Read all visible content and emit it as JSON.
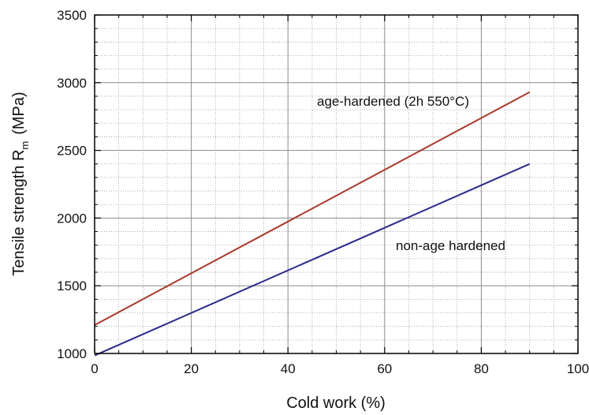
{
  "chart_data": {
    "type": "line",
    "xlabel": "Cold work (%)",
    "ylabel_main": "Tensile strength R",
    "ylabel_subscript": "m",
    "ylabel_unit": "(MPa)",
    "xlim": [
      0,
      100
    ],
    "ylim": [
      1000,
      3500
    ],
    "x_ticks": [
      0,
      20,
      40,
      60,
      80,
      100
    ],
    "y_ticks": [
      1000,
      1500,
      2000,
      2500,
      3000,
      3500
    ],
    "x_minor_step": 5,
    "y_minor_step": 100,
    "grid": true,
    "series": [
      {
        "label": "age-hardened (2h 550°C)",
        "color": "#a83a2a",
        "points": [
          [
            0,
            1210
          ],
          [
            90,
            2930
          ]
        ]
      },
      {
        "label": "non-age hardened",
        "color": "#2a2a8c",
        "points": [
          [
            0,
            985
          ],
          [
            90,
            2400
          ]
        ]
      }
    ]
  }
}
